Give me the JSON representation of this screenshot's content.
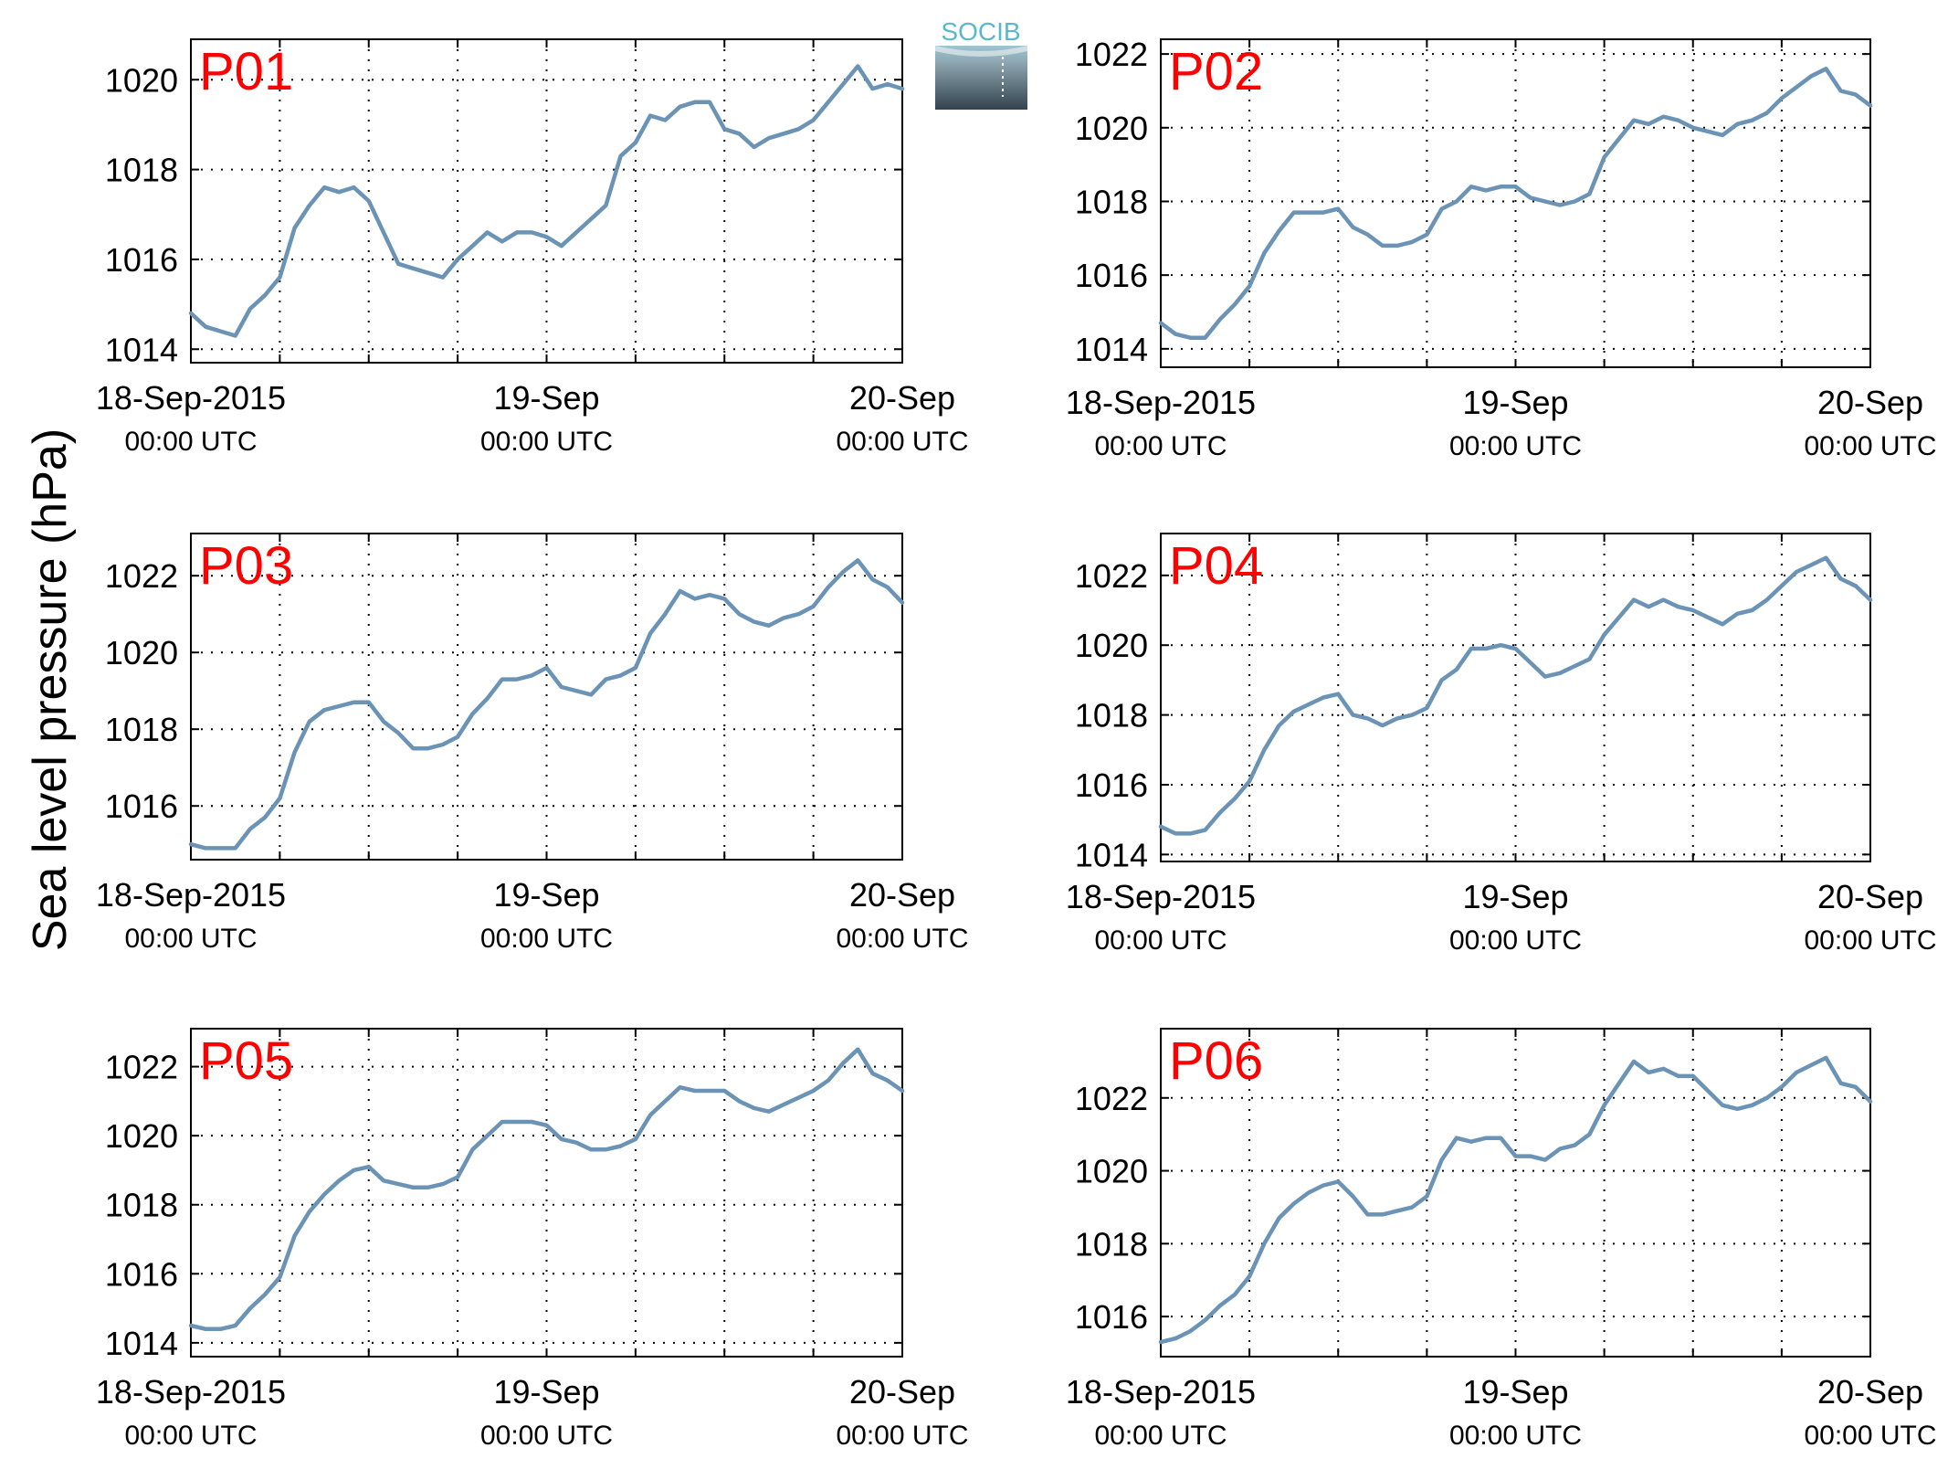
{
  "figure": {
    "ylabel": "Sea level pressure (hPa)",
    "logo_text": "SOCIB",
    "panel_label_color": "#ff0000",
    "line_color": "#6b93b5"
  },
  "chart_data": [
    {
      "type": "line",
      "panel": "P01",
      "xlim": [
        "2015-09-18T00:00",
        "2015-09-20T00:00"
      ],
      "ylim": [
        1013.7,
        1020.9
      ],
      "yticks": [
        1014,
        1016,
        1018,
        1020
      ],
      "xticks": [
        {
          "date": "18-Sep-2015",
          "time": "00:00 UTC"
        },
        {
          "date": "19-Sep",
          "time": "00:00 UTC"
        },
        {
          "date": "20-Sep",
          "time": "00:00 UTC"
        }
      ],
      "grid": true,
      "series": [
        {
          "x_hours": [
            0,
            1,
            2,
            3,
            4,
            5,
            6,
            7,
            8,
            9,
            10,
            11,
            12,
            13,
            14,
            15,
            16,
            17,
            18,
            19,
            20,
            21,
            22,
            23,
            24,
            25,
            26,
            27,
            28,
            29,
            30,
            31,
            32,
            33,
            34,
            35,
            36,
            37,
            38,
            39,
            40,
            41,
            42,
            43,
            44,
            45,
            46,
            47,
            48
          ],
          "values": [
            1014.8,
            1014.5,
            1014.4,
            1014.3,
            1014.9,
            1015.2,
            1015.6,
            1016.7,
            1017.2,
            1017.6,
            1017.5,
            1017.6,
            1017.3,
            1016.6,
            1015.9,
            1015.8,
            1015.7,
            1015.6,
            1016.0,
            1016.3,
            1016.6,
            1016.4,
            1016.6,
            1016.6,
            1016.5,
            1016.3,
            1016.6,
            1016.9,
            1017.2,
            1018.3,
            1018.6,
            1019.2,
            1019.1,
            1019.4,
            1019.5,
            1019.5,
            1018.9,
            1018.8,
            1018.5,
            1018.7,
            1018.8,
            1018.9,
            1019.1,
            1019.5,
            1019.9,
            1020.3,
            1019.8,
            1019.9,
            1019.8
          ]
        }
      ]
    },
    {
      "type": "line",
      "panel": "P02",
      "xlim": [
        "2015-09-18T00:00",
        "2015-09-20T00:00"
      ],
      "ylim": [
        1013.5,
        1022.4
      ],
      "yticks": [
        1014,
        1016,
        1018,
        1020,
        1022
      ],
      "xticks": [
        {
          "date": "18-Sep-2015",
          "time": "00:00 UTC"
        },
        {
          "date": "19-Sep",
          "time": "00:00 UTC"
        },
        {
          "date": "20-Sep",
          "time": "00:00 UTC"
        }
      ],
      "grid": true,
      "series": [
        {
          "x_hours": [
            0,
            1,
            2,
            3,
            4,
            5,
            6,
            7,
            8,
            9,
            10,
            11,
            12,
            13,
            14,
            15,
            16,
            17,
            18,
            19,
            20,
            21,
            22,
            23,
            24,
            25,
            26,
            27,
            28,
            29,
            30,
            31,
            32,
            33,
            34,
            35,
            36,
            37,
            38,
            39,
            40,
            41,
            42,
            43,
            44,
            45,
            46,
            47,
            48
          ],
          "values": [
            1014.7,
            1014.4,
            1014.3,
            1014.3,
            1014.8,
            1015.2,
            1015.7,
            1016.6,
            1017.2,
            1017.7,
            1017.7,
            1017.7,
            1017.8,
            1017.3,
            1017.1,
            1016.8,
            1016.8,
            1016.9,
            1017.1,
            1017.8,
            1018.0,
            1018.4,
            1018.3,
            1018.4,
            1018.4,
            1018.1,
            1018.0,
            1017.9,
            1018.0,
            1018.2,
            1019.2,
            1019.7,
            1020.2,
            1020.1,
            1020.3,
            1020.2,
            1020.0,
            1019.9,
            1019.8,
            1020.1,
            1020.2,
            1020.4,
            1020.8,
            1021.1,
            1021.4,
            1021.6,
            1021.0,
            1020.9,
            1020.6
          ]
        }
      ]
    },
    {
      "type": "line",
      "panel": "P03",
      "xlim": [
        "2015-09-18T00:00",
        "2015-09-20T00:00"
      ],
      "ylim": [
        1014.6,
        1023.1
      ],
      "yticks": [
        1016,
        1018,
        1020,
        1022
      ],
      "xticks": [
        {
          "date": "18-Sep-2015",
          "time": "00:00 UTC"
        },
        {
          "date": "19-Sep",
          "time": "00:00 UTC"
        },
        {
          "date": "20-Sep",
          "time": "00:00 UTC"
        }
      ],
      "grid": true,
      "series": [
        {
          "x_hours": [
            0,
            1,
            2,
            3,
            4,
            5,
            6,
            7,
            8,
            9,
            10,
            11,
            12,
            13,
            14,
            15,
            16,
            17,
            18,
            19,
            20,
            21,
            22,
            23,
            24,
            25,
            26,
            27,
            28,
            29,
            30,
            31,
            32,
            33,
            34,
            35,
            36,
            37,
            38,
            39,
            40,
            41,
            42,
            43,
            44,
            45,
            46,
            47,
            48
          ],
          "values": [
            1015.0,
            1014.9,
            1014.9,
            1014.9,
            1015.4,
            1015.7,
            1016.2,
            1017.4,
            1018.2,
            1018.5,
            1018.6,
            1018.7,
            1018.7,
            1018.2,
            1017.9,
            1017.5,
            1017.5,
            1017.6,
            1017.8,
            1018.4,
            1018.8,
            1019.3,
            1019.3,
            1019.4,
            1019.6,
            1019.1,
            1019.0,
            1018.9,
            1019.3,
            1019.4,
            1019.6,
            1020.5,
            1021.0,
            1021.6,
            1021.4,
            1021.5,
            1021.4,
            1021.0,
            1020.8,
            1020.7,
            1020.9,
            1021.0,
            1021.2,
            1021.7,
            1022.1,
            1022.4,
            1021.9,
            1021.7,
            1021.3
          ]
        }
      ]
    },
    {
      "type": "line",
      "panel": "P04",
      "xlim": [
        "2015-09-18T00:00",
        "2015-09-20T00:00"
      ],
      "ylim": [
        1013.8,
        1023.2
      ],
      "yticks": [
        1014,
        1016,
        1018,
        1020,
        1022
      ],
      "xticks": [
        {
          "date": "18-Sep-2015",
          "time": "00:00 UTC"
        },
        {
          "date": "19-Sep",
          "time": "00:00 UTC"
        },
        {
          "date": "20-Sep",
          "time": "00:00 UTC"
        }
      ],
      "grid": true,
      "series": [
        {
          "x_hours": [
            0,
            1,
            2,
            3,
            4,
            5,
            6,
            7,
            8,
            9,
            10,
            11,
            12,
            13,
            14,
            15,
            16,
            17,
            18,
            19,
            20,
            21,
            22,
            23,
            24,
            25,
            26,
            27,
            28,
            29,
            30,
            31,
            32,
            33,
            34,
            35,
            36,
            37,
            38,
            39,
            40,
            41,
            42,
            43,
            44,
            45,
            46,
            47,
            48
          ],
          "values": [
            1014.8,
            1014.6,
            1014.6,
            1014.7,
            1015.2,
            1015.6,
            1016.1,
            1017.0,
            1017.7,
            1018.1,
            1018.3,
            1018.5,
            1018.6,
            1018.0,
            1017.9,
            1017.7,
            1017.9,
            1018.0,
            1018.2,
            1019.0,
            1019.3,
            1019.9,
            1019.9,
            1020.0,
            1019.9,
            1019.5,
            1019.1,
            1019.2,
            1019.4,
            1019.6,
            1020.3,
            1020.8,
            1021.3,
            1021.1,
            1021.3,
            1021.1,
            1021.0,
            1020.8,
            1020.6,
            1020.9,
            1021.0,
            1021.3,
            1021.7,
            1022.1,
            1022.3,
            1022.5,
            1021.9,
            1021.7,
            1021.3
          ]
        }
      ]
    },
    {
      "type": "line",
      "panel": "P05",
      "xlim": [
        "2015-09-18T00:00",
        "2015-09-20T00:00"
      ],
      "ylim": [
        1013.6,
        1023.1
      ],
      "yticks": [
        1014,
        1016,
        1018,
        1020,
        1022
      ],
      "xticks": [
        {
          "date": "18-Sep-2015",
          "time": "00:00 UTC"
        },
        {
          "date": "19-Sep",
          "time": "00:00 UTC"
        },
        {
          "date": "20-Sep",
          "time": "00:00 UTC"
        }
      ],
      "grid": true,
      "series": [
        {
          "x_hours": [
            0,
            1,
            2,
            3,
            4,
            5,
            6,
            7,
            8,
            9,
            10,
            11,
            12,
            13,
            14,
            15,
            16,
            17,
            18,
            19,
            20,
            21,
            22,
            23,
            24,
            25,
            26,
            27,
            28,
            29,
            30,
            31,
            32,
            33,
            34,
            35,
            36,
            37,
            38,
            39,
            40,
            41,
            42,
            43,
            44,
            45,
            46,
            47,
            48
          ],
          "values": [
            1014.5,
            1014.4,
            1014.4,
            1014.5,
            1015.0,
            1015.4,
            1015.9,
            1017.1,
            1017.8,
            1018.3,
            1018.7,
            1019.0,
            1019.1,
            1018.7,
            1018.6,
            1018.5,
            1018.5,
            1018.6,
            1018.8,
            1019.6,
            1020.0,
            1020.4,
            1020.4,
            1020.4,
            1020.3,
            1019.9,
            1019.8,
            1019.6,
            1019.6,
            1019.7,
            1019.9,
            1020.6,
            1021.0,
            1021.4,
            1021.3,
            1021.3,
            1021.3,
            1021.0,
            1020.8,
            1020.7,
            1020.9,
            1021.1,
            1021.3,
            1021.6,
            1022.1,
            1022.5,
            1021.8,
            1021.6,
            1021.3
          ]
        }
      ]
    },
    {
      "type": "line",
      "panel": "P06",
      "xlim": [
        "2015-09-18T00:00",
        "2015-09-20T00:00"
      ],
      "ylim": [
        1014.9,
        1023.9
      ],
      "yticks": [
        1016,
        1018,
        1020,
        1022
      ],
      "xticks": [
        {
          "date": "18-Sep-2015",
          "time": "00:00 UTC"
        },
        {
          "date": "19-Sep",
          "time": "00:00 UTC"
        },
        {
          "date": "20-Sep",
          "time": "00:00 UTC"
        }
      ],
      "grid": true,
      "series": [
        {
          "x_hours": [
            0,
            1,
            2,
            3,
            4,
            5,
            6,
            7,
            8,
            9,
            10,
            11,
            12,
            13,
            14,
            15,
            16,
            17,
            18,
            19,
            20,
            21,
            22,
            23,
            24,
            25,
            26,
            27,
            28,
            29,
            30,
            31,
            32,
            33,
            34,
            35,
            36,
            37,
            38,
            39,
            40,
            41,
            42,
            43,
            44,
            45,
            46,
            47,
            48
          ],
          "values": [
            1015.3,
            1015.4,
            1015.6,
            1015.9,
            1016.3,
            1016.6,
            1017.1,
            1018.0,
            1018.7,
            1019.1,
            1019.4,
            1019.6,
            1019.7,
            1019.3,
            1018.8,
            1018.8,
            1018.9,
            1019.0,
            1019.3,
            1020.3,
            1020.9,
            1020.8,
            1020.9,
            1020.9,
            1020.4,
            1020.4,
            1020.3,
            1020.6,
            1020.7,
            1021.0,
            1021.8,
            1022.4,
            1023.0,
            1022.7,
            1022.8,
            1022.6,
            1022.6,
            1022.2,
            1021.8,
            1021.7,
            1021.8,
            1022.0,
            1022.3,
            1022.7,
            1022.9,
            1023.1,
            1022.4,
            1022.3,
            1021.9
          ]
        }
      ]
    }
  ]
}
